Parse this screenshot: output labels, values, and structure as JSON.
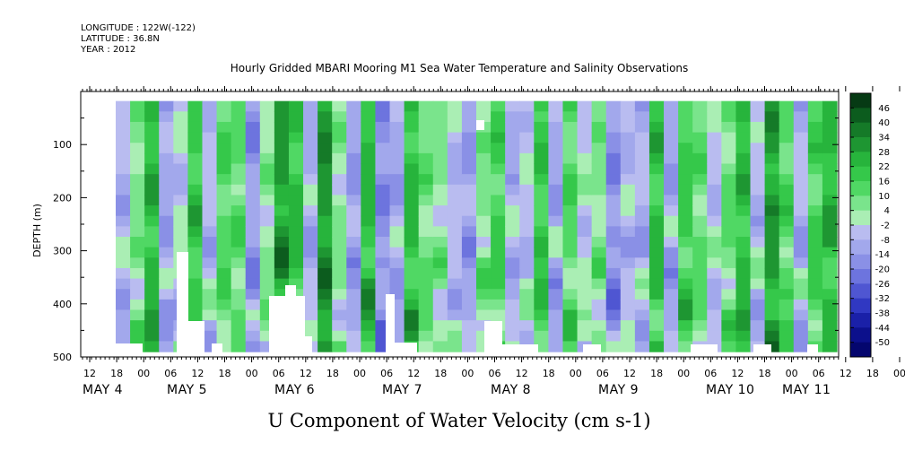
{
  "header": {
    "longitude": "LONGITUDE : 122W(-122)",
    "latitude": "LATITUDE : 36.8N",
    "year": "YEAR : 2012"
  },
  "chart_data": {
    "type": "heatmap",
    "title": "Hourly Gridded MBARI Mooring M1 Sea Water Temperature and Salinity Observations",
    "xlabel": "U Component of Water Velocity (cm s-1)",
    "ylabel": "DEPTH (m)",
    "ylim": [
      500,
      0
    ],
    "y_reversed": true,
    "y_ticks": [
      100,
      200,
      300,
      400,
      500
    ],
    "x_hour_ticks": [
      "12",
      "18",
      "00",
      "06",
      "12",
      "18",
      "00",
      "06",
      "12",
      "18",
      "00",
      "06",
      "12",
      "18",
      "00",
      "06",
      "12",
      "18",
      "00",
      "06",
      "12",
      "18",
      "00",
      "06",
      "12",
      "18",
      "00",
      "06",
      "12",
      "18",
      "00",
      "06"
    ],
    "x_day_labels": [
      "MAY  4",
      "MAY  5",
      "MAY  6",
      "MAY  7",
      "MAY  8",
      "MAY  9",
      "MAY 10",
      "MAY 11"
    ],
    "data_start_hour": 18,
    "colorbar": {
      "labels": [
        "46",
        "40",
        "34",
        "28",
        "22",
        "16",
        "10",
        "4",
        "-2",
        "-8",
        "-14",
        "-20",
        "-26",
        "-32",
        "-38",
        "-44",
        "-50"
      ],
      "colors": [
        "#063a14",
        "#0c5c1e",
        "#157a28",
        "#1e9632",
        "#27b43c",
        "#35c84a",
        "#50d864",
        "#7ae48c",
        "#aaeeb4",
        "#b9bcf0",
        "#a2a8ec",
        "#8a90e6",
        "#6d74de",
        "#4f56d2",
        "#3038c2",
        "#1a20a8",
        "#0c108c",
        "#04066e"
      ]
    },
    "band_values": [
      -8,
      6,
      22,
      -10,
      -4,
      18,
      -6,
      12,
      10,
      -14,
      4,
      28,
      20,
      -8,
      30,
      4,
      -12,
      22,
      -16,
      -10,
      20,
      8,
      4,
      -6,
      -12,
      6,
      14,
      -8,
      -4,
      18,
      -10,
      12,
      -2,
      6,
      -16,
      -6,
      -8,
      20,
      -10,
      16,
      10,
      -4,
      8,
      22,
      -6,
      28,
      12,
      -8,
      14,
      22
    ],
    "data_gaps": "white areas near bottom (below ~380-490 m) and small gap near 7-8 May at ~80 m"
  }
}
